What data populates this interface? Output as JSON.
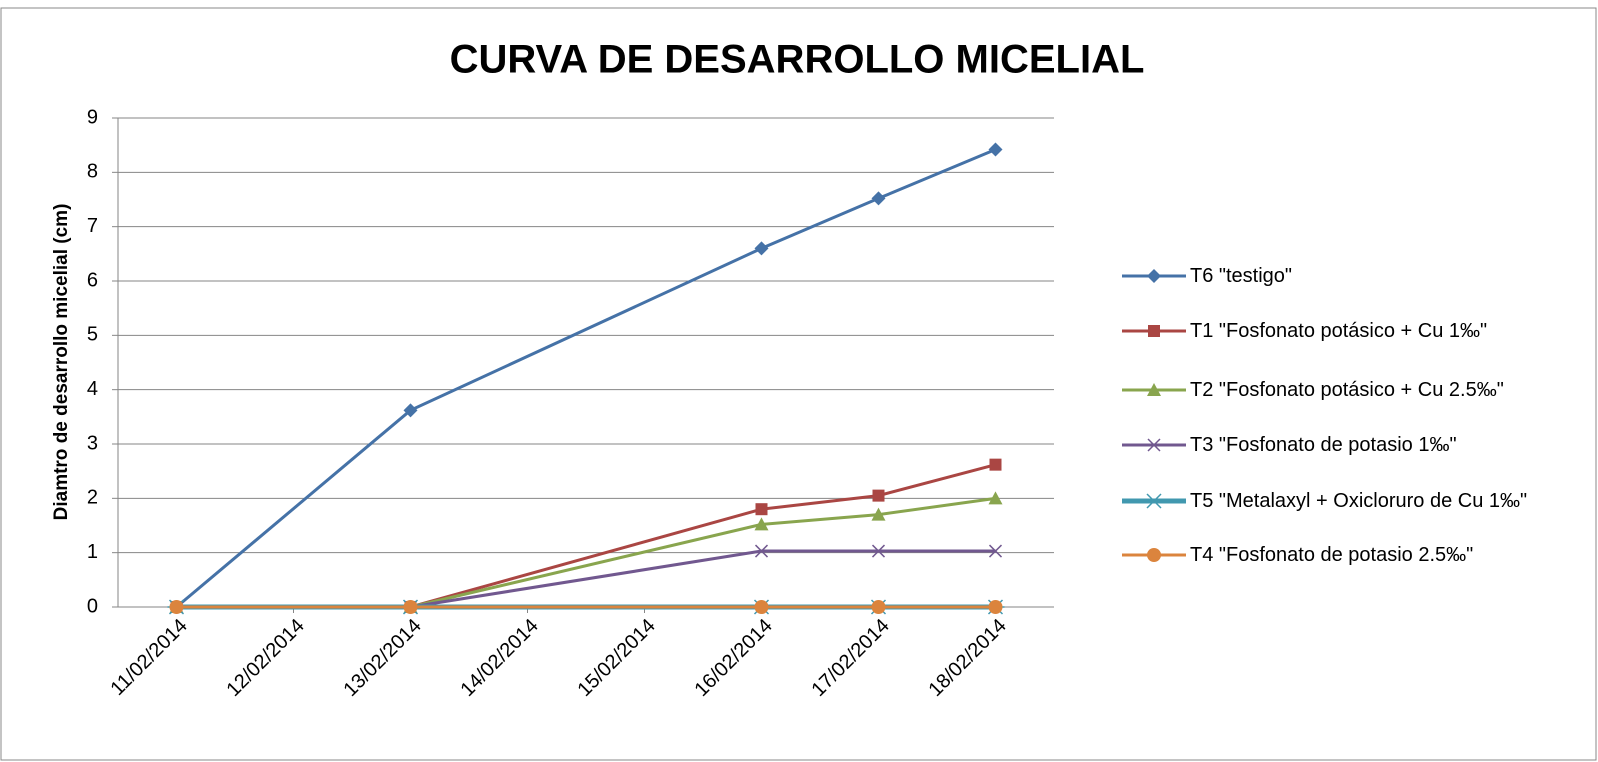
{
  "chart_data": {
    "type": "line",
    "title": "CURVA DE DESARROLLO MICELIAL",
    "y_label": "Diamtro de desarrollo micelial (cm)",
    "x": [
      "11/02/2014",
      "13/02/2014",
      "16/02/2014",
      "17/02/2014",
      "18/02/2014"
    ],
    "xlim": [
      "11/02/2014",
      "18/02/2014"
    ],
    "xticks": [
      "11/02/2014",
      "12/02/2014",
      "13/02/2014",
      "14/02/2014",
      "15/02/2014",
      "16/02/2014",
      "17/02/2014",
      "18/02/2014"
    ],
    "ylim": [
      0,
      9
    ],
    "yticks": [
      0,
      1,
      2,
      3,
      4,
      5,
      6,
      7,
      8,
      9
    ],
    "grid": true,
    "legend": "right",
    "series": [
      {
        "name": "T6 \"testigo\"",
        "color": "#4572a7",
        "marker": "diamond",
        "values": [
          0,
          3.62,
          6.6,
          7.52,
          8.42
        ]
      },
      {
        "name": "T1 \"Fosfonato potásico + Cu 1‰\"",
        "color": "#aa4643",
        "marker": "square",
        "values": [
          0,
          0,
          1.8,
          2.05,
          2.62
        ]
      },
      {
        "name": "T2 \"Fosfonato potásico + Cu 2.5‰\"",
        "color": "#89a54e",
        "marker": "triangle",
        "values": [
          0,
          0,
          1.52,
          1.7,
          2.0
        ]
      },
      {
        "name": "T3 \"Fosfonato de potasio 1‰\"",
        "color": "#71588f",
        "marker": "x",
        "values": [
          0,
          0,
          1.03,
          1.03,
          1.03
        ]
      },
      {
        "name": "T5 \"Metalaxyl + Oxicloruro de Cu 1‰\"",
        "color": "#4198af",
        "marker": "star",
        "width": 5,
        "values": [
          0,
          0,
          0,
          0,
          0
        ]
      },
      {
        "name": "T4 \"Fosfonato de potasio 2.5‰\"",
        "color": "#db843d",
        "marker": "circle",
        "values": [
          0,
          0,
          0,
          0,
          0
        ]
      }
    ]
  }
}
